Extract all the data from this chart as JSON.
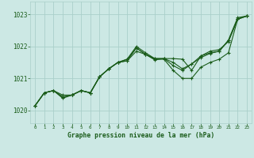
{
  "title": "Graphe pression niveau de la mer (hPa)",
  "bg_color": "#cce8e4",
  "grid_color": "#aacfca",
  "line_color": "#1a5c1a",
  "xlim": [
    -0.5,
    23.5
  ],
  "ylim": [
    1019.6,
    1023.4
  ],
  "yticks": [
    1020,
    1021,
    1022,
    1023
  ],
  "xticks": [
    0,
    1,
    2,
    3,
    4,
    5,
    6,
    7,
    8,
    9,
    10,
    11,
    12,
    13,
    14,
    15,
    16,
    17,
    18,
    19,
    20,
    21,
    22,
    23
  ],
  "series": [
    [
      1020.15,
      1020.55,
      1020.62,
      1020.48,
      1020.48,
      1020.62,
      1020.55,
      1021.05,
      1021.3,
      1021.5,
      1021.55,
      1021.95,
      1021.75,
      1021.62,
      1021.62,
      1021.4,
      1021.25,
      1021.45,
      1021.7,
      1021.8,
      1021.85,
      1022.2,
      1022.9,
      1022.95
    ],
    [
      1020.15,
      1020.55,
      1020.62,
      1020.38,
      1020.48,
      1020.62,
      1020.55,
      1021.05,
      1021.3,
      1021.5,
      1021.6,
      1022.0,
      1021.8,
      1021.62,
      1021.62,
      1021.62,
      1021.6,
      1021.25,
      1021.7,
      1021.85,
      1021.9,
      1022.15,
      1022.85,
      1022.95
    ],
    [
      1020.15,
      1020.55,
      1020.62,
      1020.42,
      1020.48,
      1020.62,
      1020.55,
      1021.05,
      1021.3,
      1021.5,
      1021.6,
      1021.95,
      1021.75,
      1021.6,
      1021.6,
      1021.25,
      1021.0,
      1021.0,
      1021.35,
      1021.5,
      1021.6,
      1021.8,
      1022.85,
      1022.95
    ],
    [
      1020.15,
      1020.55,
      1020.62,
      1020.42,
      1020.48,
      1020.62,
      1020.55,
      1021.05,
      1021.3,
      1021.5,
      1021.55,
      1021.85,
      1021.75,
      1021.58,
      1021.62,
      1021.5,
      1021.3,
      1021.45,
      1021.65,
      1021.78,
      1021.85,
      1022.18,
      1022.85,
      1022.95
    ]
  ]
}
